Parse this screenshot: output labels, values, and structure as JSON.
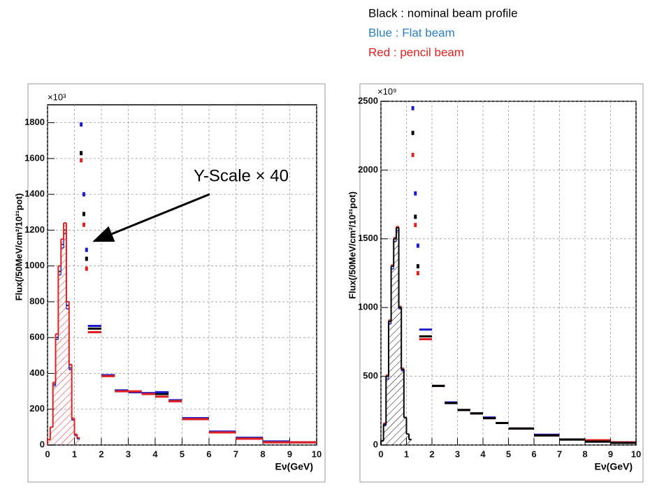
{
  "chart_data": [
    {
      "type": "histogram",
      "y_exponent": "×10³",
      "ylabel": "Flux(/50MeV/cm²/10²¹pot)",
      "xlabel": "Eν(GeV)",
      "annotation": "Y-Scale × 40",
      "xlim": [
        0,
        10
      ],
      "xticks": [
        0,
        1,
        2,
        3,
        4,
        5,
        6,
        7,
        8,
        9,
        10
      ],
      "ylim": [
        0,
        1900
      ],
      "yticks": [
        0,
        200,
        400,
        600,
        800,
        1000,
        1200,
        1400,
        1600,
        1800
      ],
      "grid": true,
      "hatched": "Red : pencil beam",
      "bins": [
        0,
        0.1,
        0.2,
        0.3,
        0.4,
        0.5,
        0.6,
        0.7,
        0.8,
        0.9,
        1.0,
        1.1,
        1.2
      ],
      "scaled_bins": [
        1.2,
        1.3,
        1.4,
        1.5,
        2,
        2.5,
        3,
        3.5,
        4,
        4.5,
        5,
        6,
        7,
        8,
        9,
        10
      ],
      "series": [
        {
          "name": "Black : nominal beam profile",
          "color": "#000000",
          "values": [
            30,
            100,
            340,
            600,
            970,
            1120,
            1200,
            780,
            430,
            140,
            55,
            35
          ],
          "scaled_values": [
            1630,
            1290,
            1040,
            650,
            390,
            305,
            295,
            285,
            285,
            245,
            145,
            70,
            40,
            15,
            15
          ]
        },
        {
          "name": "Blue : Flat beam",
          "color": "#1c1ccc",
          "values": [
            30,
            100,
            330,
            590,
            950,
            1100,
            1180,
            760,
            420,
            140,
            55,
            35
          ],
          "scaled_values": [
            1790,
            1400,
            1090,
            665,
            390,
            305,
            295,
            290,
            295,
            250,
            150,
            75,
            40,
            20,
            15
          ]
        },
        {
          "name": "Red : pencil beam",
          "color": "#e02020",
          "values": [
            30,
            100,
            350,
            620,
            1000,
            1150,
            1240,
            800,
            450,
            150,
            60,
            40
          ],
          "scaled_values": [
            1590,
            1230,
            985,
            630,
            385,
            300,
            300,
            285,
            270,
            245,
            145,
            70,
            35,
            15,
            15
          ]
        }
      ]
    },
    {
      "type": "histogram",
      "y_exponent": "×10⁹",
      "ylabel": "Flux(/50MeV/cm²/10²¹pot)",
      "xlabel": "Eν(GeV)",
      "xlim": [
        0,
        10
      ],
      "xticks": [
        0,
        1,
        2,
        3,
        4,
        5,
        6,
        7,
        8,
        9,
        10
      ],
      "ylim": [
        0,
        2500
      ],
      "yticks": [
        0,
        500,
        1000,
        1500,
        2000,
        2500
      ],
      "grid": true,
      "hatched": "Black : nominal beam profile",
      "bins": [
        0,
        0.1,
        0.2,
        0.3,
        0.4,
        0.5,
        0.6,
        0.7,
        0.8,
        0.9,
        1.0,
        1.1,
        1.2
      ],
      "scaled_bins": [
        1.2,
        1.3,
        1.4,
        1.5,
        2,
        2.5,
        3,
        3.5,
        4,
        4.5,
        5,
        6,
        7,
        8,
        9,
        10
      ],
      "series": [
        {
          "name": "Black : nominal beam profile",
          "color": "#000000",
          "values": [
            30,
            150,
            500,
            900,
            1300,
            1500,
            1580,
            1000,
            550,
            200,
            80,
            40
          ],
          "scaled_values": [
            2270,
            1660,
            1300,
            790,
            430,
            305,
            255,
            230,
            195,
            160,
            120,
            70,
            40,
            25,
            15
          ]
        },
        {
          "name": "Blue : Flat beam",
          "color": "#1c1ccc",
          "values": [
            30,
            140,
            480,
            880,
            1280,
            1480,
            1560,
            990,
            540,
            200,
            80,
            40
          ],
          "scaled_values": [
            2450,
            1830,
            1450,
            840,
            430,
            310,
            255,
            230,
            200,
            160,
            120,
            75,
            40,
            25,
            20
          ]
        },
        {
          "name": "Red : pencil beam",
          "color": "#e02020",
          "values": [
            30,
            160,
            510,
            910,
            1310,
            1510,
            1590,
            1010,
            560,
            200,
            80,
            40
          ],
          "scaled_values": [
            2110,
            1600,
            1250,
            770,
            430,
            305,
            255,
            230,
            195,
            160,
            120,
            70,
            40,
            35,
            20
          ]
        }
      ]
    }
  ]
}
